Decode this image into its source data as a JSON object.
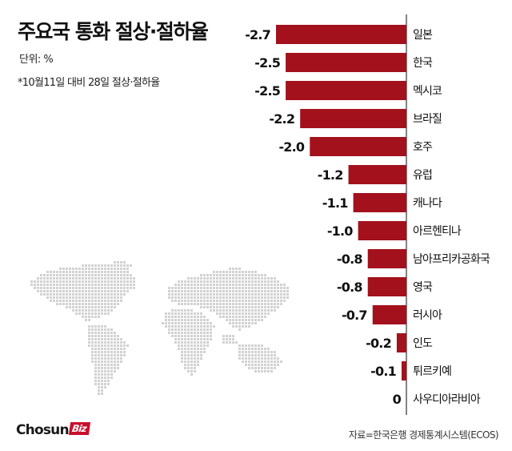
{
  "header": {
    "title": "주요국 통화 절상·절하율",
    "unit": "단위: %",
    "note": "*10월11일 대비 28일 절상·절하율"
  },
  "footer": {
    "source": "자료=한국은행 경제통계시스템(ECOS)",
    "logo_main": "Chosun",
    "logo_badge": "Biz"
  },
  "colors": {
    "bar": "#a3111c",
    "axis": "#333333",
    "map_dots": "#d2d2d2"
  },
  "chart_data": {
    "type": "bar",
    "orientation": "horizontal",
    "title": "주요국 통화 절상·절하율",
    "categories": [
      "일본",
      "한국",
      "멕시코",
      "브라질",
      "호주",
      "유럽",
      "캐나다",
      "아르헨티나",
      "남아프리카공화국",
      "영국",
      "러시아",
      "인도",
      "튀르키예",
      "사우디아라비아"
    ],
    "values": [
      -2.7,
      -2.5,
      -2.5,
      -2.2,
      -2.0,
      -1.2,
      -1.1,
      -1.0,
      -0.8,
      -0.8,
      -0.7,
      -0.2,
      -0.1,
      0
    ],
    "value_labels": [
      "-2.7",
      "-2.5",
      "-2.5",
      "-2.2",
      "-2.0",
      "-1.2",
      "-1.1",
      "-1.0",
      "-0.8",
      "-0.8",
      "-0.7",
      "-0.2",
      "-0.1",
      "0"
    ],
    "xlim": [
      -2.7,
      0
    ],
    "grid": false,
    "legend": "none"
  }
}
